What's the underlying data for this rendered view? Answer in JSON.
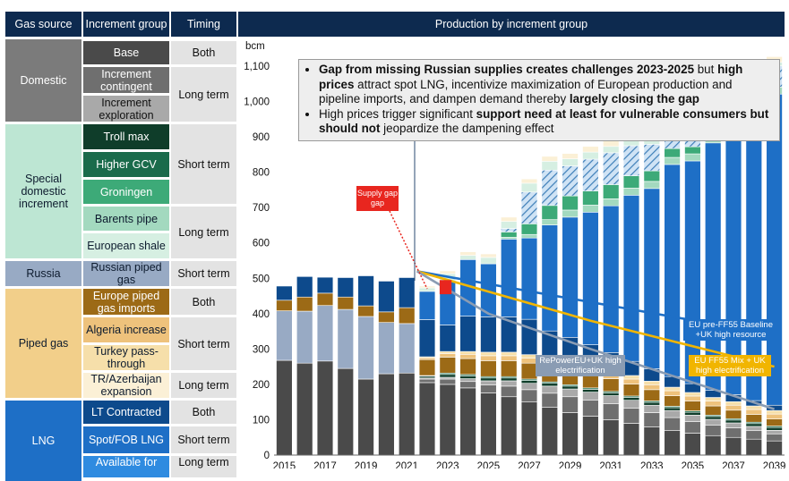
{
  "headers": {
    "gas_source": "Gas source",
    "increment_group": "Increment group",
    "timing": "Timing",
    "production": "Production by increment group"
  },
  "table": {
    "sources": [
      {
        "label": "Domestic",
        "color": "#7b7b7b",
        "text_color": "#ffffff"
      },
      {
        "label": "Special domestic increment",
        "color": "#bde6d3",
        "text_color": "#0d1b2e"
      },
      {
        "label": "Russia",
        "color": "#98aac4",
        "text_color": "#0d1b2e"
      },
      {
        "label": "Piped gas",
        "color": "#f2cf8a",
        "text_color": "#0d1b2e"
      },
      {
        "label": "LNG",
        "color": "#1e6fc6",
        "text_color": "#ffffff"
      }
    ],
    "groups": [
      {
        "label": "Base",
        "color": "#4a4a4a",
        "text_color": "#ffffff"
      },
      {
        "label": "Increment contingent",
        "color": "#6f6f6f",
        "text_color": "#ffffff"
      },
      {
        "label": "Increment exploration",
        "color": "#a9a9a9",
        "text_color": "#111111"
      },
      {
        "label": "Troll max",
        "color": "#0f3d2a",
        "text_color": "#ffffff"
      },
      {
        "label": "Higher GCV",
        "color": "#1a6b4b",
        "text_color": "#ffffff"
      },
      {
        "label": "Groningen",
        "color": "#3daa78",
        "text_color": "#ffffff"
      },
      {
        "label": "Barents pipe",
        "color": "#a3d9bf",
        "text_color": "#0d1b2e"
      },
      {
        "label": "European shale",
        "color": "#d6efe2",
        "text_color": "#0d1b2e"
      },
      {
        "label": "Russian piped gas",
        "color": "#98aac4",
        "text_color": "#0d1b2e"
      },
      {
        "label": "Europe piped gas imports",
        "color": "#9c6a16",
        "text_color": "#ffffff"
      },
      {
        "label": "Algeria increase",
        "color": "#eec27c",
        "text_color": "#0d1b2e"
      },
      {
        "label": "Turkey pass-through",
        "color": "#f6dfaa",
        "text_color": "#0d1b2e"
      },
      {
        "label": "TR/Azerbaijan expansion",
        "color": "#fbf0d6",
        "text_color": "#0d1b2e"
      },
      {
        "label": "LT Contracted",
        "color": "#0d4a8c",
        "text_color": "#ffffff"
      },
      {
        "label": "Spot/FOB LNG",
        "color": "#1e6fc6",
        "text_color": "#ffffff"
      },
      {
        "label": "Available for",
        "color": "#2f8be0",
        "text_color": "#ffffff"
      }
    ],
    "timings": [
      "Both",
      "Long term",
      "Short term",
      "Long term",
      "Short term",
      "Both",
      "Short term",
      "Long term",
      "Both",
      "Short term",
      "Long term"
    ]
  },
  "callout": {
    "b1_1": "Gap from missing Russian supplies creates challenges 2023-2025",
    "b1_2": " but ",
    "b1_3": "high prices",
    "b1_4": " attract spot LNG, incentivize maximization of European production and pipeline imports, and dampen demand thereby ",
    "b1_5": "largely closing the gap",
    "b2_1": "High prices trigger significant ",
    "b2_2": "support need at least for vulnerable consumers but should not",
    "b2_3": " jeopardize the dampening effect"
  },
  "chart_data": {
    "type": "bar",
    "stacked": true,
    "ylabel": "bcm",
    "ylim": [
      0,
      1100
    ],
    "yticks": [
      0,
      100,
      200,
      300,
      400,
      500,
      600,
      700,
      800,
      900,
      "1,000",
      "1,100"
    ],
    "categories": [
      2015,
      2016,
      2017,
      2018,
      2019,
      2020,
      2021,
      2022,
      2023,
      2024,
      2025,
      2026,
      2027,
      2028,
      2029,
      2030,
      2031,
      2032,
      2033,
      2034,
      2035,
      2036,
      2037,
      2038,
      2039
    ],
    "xtick_labels": [
      "2015",
      "2017",
      "2019",
      "2021",
      "2023",
      "2025",
      "2027",
      "2029",
      "2031",
      "2033",
      "2035",
      "2037",
      "2039"
    ],
    "series": [
      {
        "name": "Base",
        "values": [
          268,
          260,
          266,
          245,
          215,
          230,
          232,
          205,
          200,
          190,
          176,
          165,
          150,
          135,
          120,
          110,
          100,
          90,
          80,
          70,
          62,
          55,
          50,
          45,
          40
        ]
      },
      {
        "name": "Increment contingent",
        "values": [
          0,
          0,
          0,
          0,
          0,
          0,
          0,
          10,
          15,
          18,
          22,
          30,
          35,
          40,
          45,
          45,
          45,
          43,
          40,
          36,
          33,
          30,
          27,
          24,
          20
        ]
      },
      {
        "name": "Increment exploration",
        "values": [
          0,
          0,
          0,
          0,
          0,
          0,
          0,
          3,
          5,
          8,
          12,
          15,
          18,
          20,
          22,
          23,
          23,
          22,
          21,
          20,
          18,
          16,
          14,
          12,
          10
        ]
      },
      {
        "name": "Troll max",
        "values": [
          0,
          0,
          0,
          0,
          0,
          0,
          0,
          5,
          8,
          8,
          8,
          8,
          8,
          8,
          8,
          8,
          8,
          8,
          8,
          8,
          8,
          8,
          8,
          8,
          8
        ]
      },
      {
        "name": "Higher GCV",
        "values": [
          0,
          0,
          0,
          0,
          0,
          0,
          0,
          2,
          4,
          4,
          4,
          4,
          4,
          4,
          4,
          4,
          4,
          4,
          4,
          4,
          4,
          4,
          4,
          4,
          4
        ]
      },
      {
        "name": "Russian piped gas",
        "values": [
          140,
          147,
          157,
          167,
          177,
          145,
          140,
          0,
          0,
          0,
          0,
          0,
          0,
          0,
          0,
          0,
          0,
          0,
          0,
          0,
          0,
          0,
          0,
          0,
          0
        ]
      },
      {
        "name": "Europe piped gas imports",
        "values": [
          30,
          40,
          35,
          35,
          30,
          30,
          45,
          45,
          45,
          45,
          45,
          45,
          45,
          40,
          40,
          38,
          36,
          34,
          32,
          30,
          28,
          26,
          24,
          22,
          20
        ]
      },
      {
        "name": "Algeria increase",
        "values": [
          0,
          0,
          0,
          0,
          0,
          0,
          0,
          5,
          10,
          12,
          14,
          14,
          14,
          14,
          14,
          14,
          14,
          14,
          14,
          14,
          14,
          14,
          14,
          14,
          14
        ]
      },
      {
        "name": "Turkey pass-through",
        "values": [
          0,
          0,
          0,
          0,
          0,
          0,
          0,
          3,
          6,
          8,
          10,
          10,
          10,
          10,
          10,
          10,
          10,
          10,
          10,
          10,
          10,
          10,
          10,
          10,
          10
        ]
      },
      {
        "name": "LT Contracted",
        "values": [
          40,
          58,
          45,
          55,
          85,
          87,
          85,
          105,
          75,
          100,
          100,
          100,
          100,
          80,
          70,
          60,
          50,
          40,
          35,
          30,
          25,
          20,
          20,
          15,
          15
        ]
      },
      {
        "name": "Spot/FOB LNG",
        "values": [
          0,
          0,
          0,
          0,
          0,
          0,
          0,
          80,
          125,
          160,
          150,
          220,
          230,
          300,
          340,
          375,
          415,
          470,
          510,
          600,
          630,
          700,
          760,
          850,
          880
        ]
      },
      {
        "name": "Barents pipe",
        "values": [
          0,
          0,
          0,
          0,
          0,
          0,
          0,
          0,
          0,
          0,
          0,
          5,
          10,
          15,
          20,
          20,
          20,
          20,
          20,
          20,
          20,
          20,
          20,
          20,
          20
        ]
      },
      {
        "name": "Groningen",
        "values": [
          0,
          0,
          0,
          0,
          0,
          0,
          0,
          0,
          0,
          0,
          0,
          15,
          30,
          40,
          40,
          40,
          40,
          35,
          30,
          25,
          20,
          15,
          10,
          5,
          0
        ]
      },
      {
        "name": "Increment hatched",
        "values": [
          0,
          0,
          0,
          0,
          0,
          0,
          0,
          0,
          0,
          0,
          0,
          10,
          90,
          100,
          85,
          90,
          90,
          85,
          75,
          70,
          70,
          65,
          60,
          60,
          60
        ]
      },
      {
        "name": "European shale",
        "values": [
          0,
          0,
          0,
          0,
          0,
          0,
          0,
          10,
          20,
          12,
          18,
          20,
          25,
          25,
          20,
          20,
          18,
          20,
          18,
          15,
          15,
          12,
          12,
          10,
          10
        ]
      },
      {
        "name": "TR/Azerbaijan expansion",
        "values": [
          0,
          0,
          0,
          0,
          0,
          0,
          0,
          5,
          8,
          10,
          10,
          12,
          12,
          14,
          15,
          16,
          16,
          16,
          16,
          16,
          16,
          16,
          16,
          16,
          16
        ]
      }
    ],
    "lines": [
      {
        "name": "EU pre-FF55 Baseline +UK high resource",
        "label": "EU pre-FF55 Baseline +UK high resource",
        "x": [
          2021.5,
          2039
        ],
        "y": [
          520,
          340
        ]
      },
      {
        "name": "EU FF55 Mix + UK high electrification",
        "label": "EU FF55 Mix + UK high electrification",
        "x": [
          2021.5,
          2030,
          2039
        ],
        "y": [
          520,
          380,
          250
        ]
      },
      {
        "name": "RePowerEU+UK high electrification",
        "label": "RePowerEU+UK high electrification",
        "x": [
          2021.5,
          2025,
          2030,
          2039
        ],
        "y": [
          520,
          400,
          300,
          130
        ]
      }
    ],
    "annotation": {
      "label": "Supply gap",
      "year": 2022
    }
  }
}
